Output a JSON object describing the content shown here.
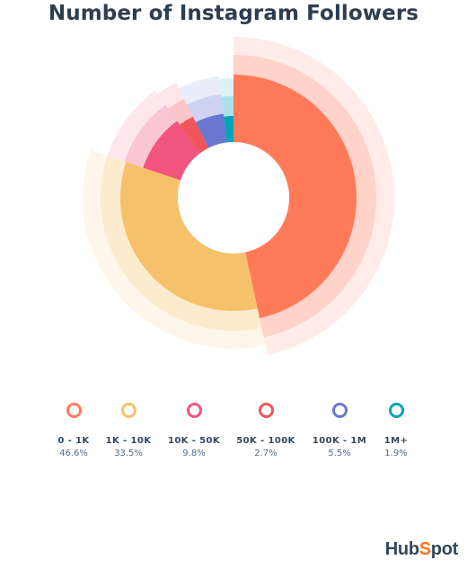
{
  "title": "Number of Instagram Followers",
  "brand": {
    "text": "HubSpot",
    "accent_color": "#f57722"
  },
  "chart_data": {
    "type": "pie",
    "variant": "donut",
    "title": "Number of Instagram Followers",
    "legend_position": "bottom",
    "slices": [
      {
        "label": "0 - 1K",
        "value": 46.6,
        "display": "46.6%",
        "color": "#ff7a59"
      },
      {
        "label": "1K - 10K",
        "value": 33.5,
        "display": "33.5%",
        "color": "#f5c26b"
      },
      {
        "label": "10K - 50K",
        "value": 9.8,
        "display": "9.8%",
        "color": "#f2547d"
      },
      {
        "label": "50K - 100K",
        "value": 2.7,
        "display": "2.7%",
        "color": "#f2545b"
      },
      {
        "label": "100K - 1M",
        "value": 5.5,
        "display": "5.5%",
        "color": "#6a78d1"
      },
      {
        "label": "1M+",
        "value": 1.9,
        "display": "1.9%",
        "color": "#00a4bd"
      }
    ]
  }
}
